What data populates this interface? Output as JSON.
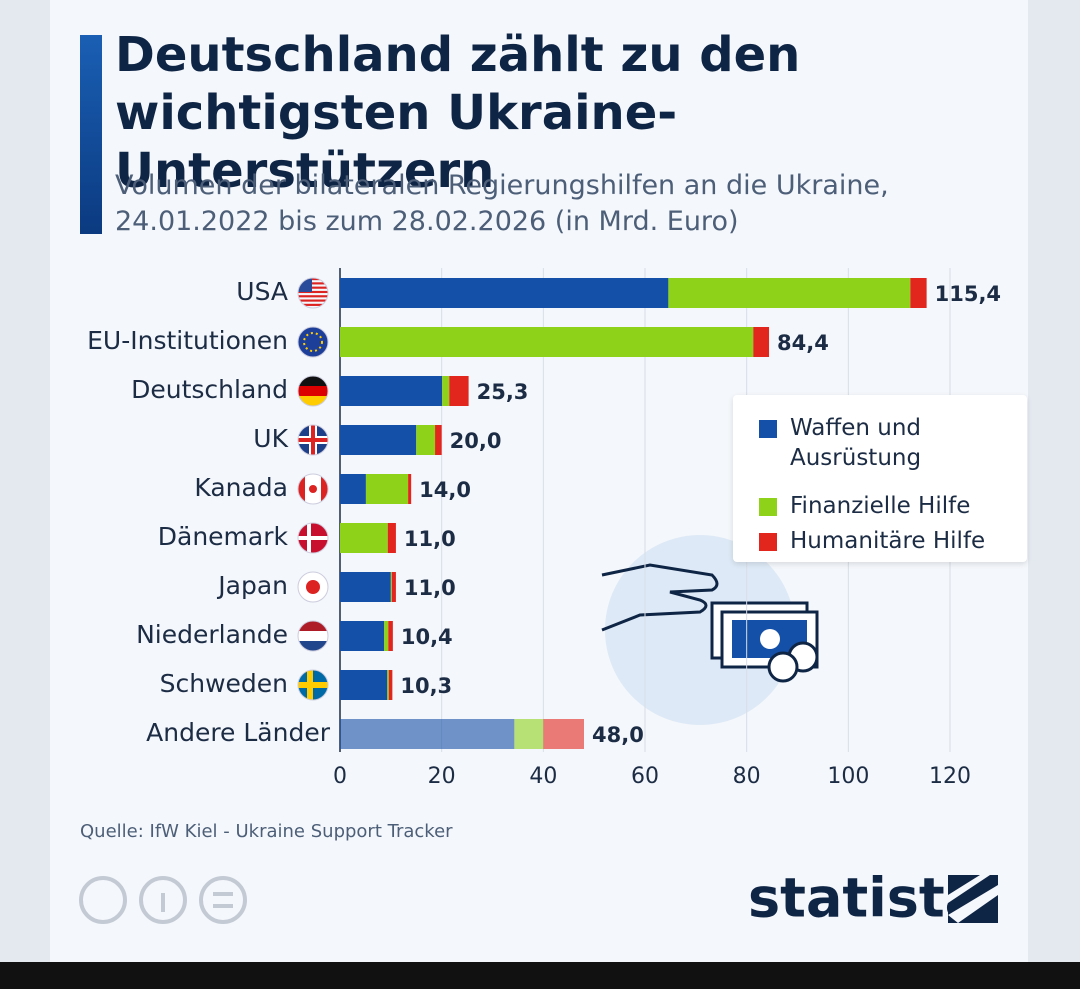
{
  "chart_data": {
    "type": "stacked-bar-horizontal",
    "title": "Deutschland zählt zu den wichtigsten Ukraine-Unterstützern",
    "subtitle": "Volumen der bilateralen Regierungshilfen an die Ukraine, 24.01.2022 bis zum 28.02.2026 (in Mrd. Euro)",
    "categories": [
      "USA",
      "EU-Institutionen",
      "Deutschland",
      "UK",
      "Kanada",
      "Dänemark",
      "Japan",
      "Niederlande",
      "Schweden",
      "Andere Länder"
    ],
    "series": [
      {
        "name": "Waffen und Ausrüstung",
        "color": "#1550a8",
        "values": [
          64.6,
          0,
          20.1,
          15.0,
          5.1,
          0,
          10.0,
          8.7,
          9.3,
          34.3
        ]
      },
      {
        "name": "Finanzielle Hilfe",
        "color": "#8ed21a",
        "values": [
          47.6,
          81.3,
          1.4,
          3.7,
          8.3,
          9.4,
          0.2,
          0.8,
          0.3,
          5.7
        ]
      },
      {
        "name": "Humanitäre Hilfe",
        "color": "#e3261d",
        "values": [
          3.2,
          3.1,
          3.8,
          1.3,
          0.6,
          1.6,
          0.8,
          0.9,
          0.7,
          8.0
        ]
      }
    ],
    "totals": [
      115.4,
      84.4,
      25.3,
      20.0,
      14.0,
      11.0,
      11.0,
      10.4,
      10.3,
      48.0
    ],
    "total_labels": [
      "115,4",
      "84,4",
      "25,3",
      "20,0",
      "14,0",
      "11,0",
      "11,0",
      "10,4",
      "10,3",
      "48,0"
    ],
    "xlim": [
      0,
      120
    ],
    "xticks": [
      0,
      20,
      40,
      60,
      80,
      100,
      120
    ],
    "grid": true,
    "legend": "right",
    "source": "Quelle: IfW Kiel - Ukraine Support Tracker",
    "logo": "statista"
  }
}
